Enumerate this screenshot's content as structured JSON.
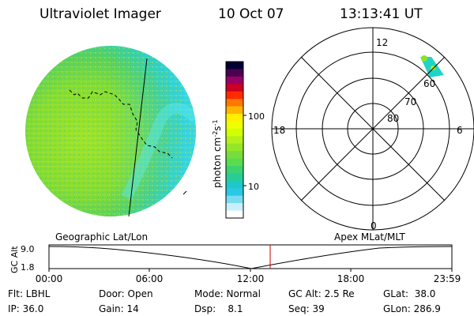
{
  "header": {
    "title": "Ultraviolet Imager",
    "date": "10 Oct 07",
    "time": "13:13:41 UT"
  },
  "colorbar": {
    "label": "photon cm",
    "exp1": "-2",
    "s_char": "s",
    "exp2": "-1",
    "ticks": [
      "100",
      "10"
    ],
    "scale": "log",
    "colors": [
      "#000033",
      "#4b0050",
      "#990066",
      "#cc0022",
      "#ff2a00",
      "#ff7800",
      "#ffb400",
      "#fff000",
      "#f0ff00",
      "#d2ff00",
      "#b4f01e",
      "#96e628",
      "#78dc3c",
      "#5adc50",
      "#3cd26e",
      "#28cc96",
      "#1ec8c8",
      "#28c8e6",
      "#78dcf0",
      "#c8f0fa",
      "#ffffff"
    ]
  },
  "polar_plot": {
    "mlt_labels": {
      "top": "12",
      "bottom": "0",
      "left": "18",
      "right": "6"
    },
    "mlat_labels": [
      "60",
      "70",
      "80"
    ]
  },
  "strip": {
    "ylabel": "GC Alt",
    "yticks": [
      "9.0",
      "1.8"
    ],
    "left_label": "Geographic Lat/Lon",
    "right_label": "Apex MLat/MLT",
    "time_labels": [
      "00:00",
      "06:00",
      "12:00",
      "18:00",
      "23:59"
    ]
  },
  "footer": {
    "rows": [
      [
        "Flt: LBHL",
        "Door: Open",
        "Mode: Normal",
        "GC Alt: 2.5 Re",
        "GLat:  38.0"
      ],
      [
        "IP: 36.0",
        "Gain: 14",
        "Dsp:    8.1",
        "Seq: 39",
        "GLon: 286.9"
      ]
    ]
  },
  "colors": {
    "disk_main": "#8ee02a",
    "disk_edge": "#28d2e0",
    "marker_line": "#cc0000"
  }
}
